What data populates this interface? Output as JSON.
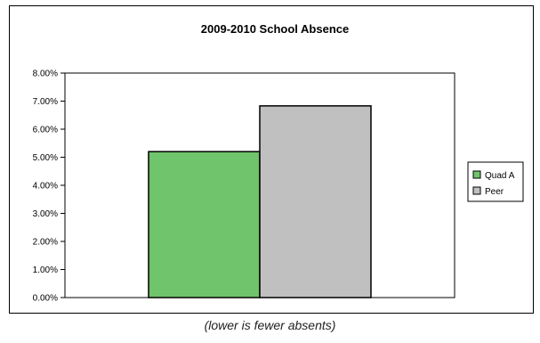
{
  "chart_data": {
    "type": "bar",
    "title": "2009-2010 School Absence",
    "categories": [
      ""
    ],
    "series": [
      {
        "name": "Quad A",
        "values": [
          0.052
        ],
        "color": "#70c46b"
      },
      {
        "name": "Peer",
        "values": [
          0.0683
        ],
        "color": "#c0c0c0"
      }
    ],
    "yticks": [
      "0.00%",
      "1.00%",
      "2.00%",
      "3.00%",
      "4.00%",
      "5.00%",
      "6.00%",
      "7.00%",
      "8.00%"
    ],
    "ylim": [
      0,
      0.08
    ],
    "xlabel": "",
    "ylabel": "",
    "grid": false,
    "legend_position": "right"
  },
  "caption": "(lower is fewer absents)"
}
